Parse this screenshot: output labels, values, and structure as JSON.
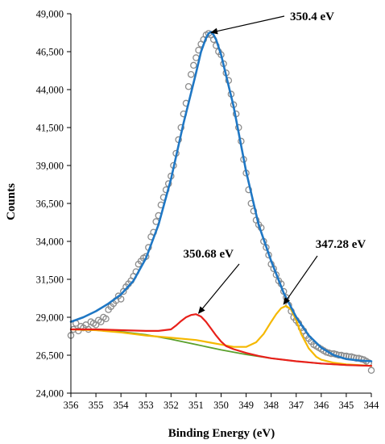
{
  "chart_data": {
    "type": "line",
    "xlabel": "Binding Energy (eV)",
    "ylabel": "Counts",
    "xlim": [
      356,
      344
    ],
    "x_reversed": true,
    "ylim": [
      24000,
      49000
    ],
    "x_ticks": [
      "356",
      "355",
      "354",
      "353",
      "352",
      "351",
      "350",
      "349",
      "348",
      "347",
      "346",
      "345",
      "344"
    ],
    "y_ticks": [
      "24,000",
      "26,500",
      "29,000",
      "31,500",
      "34,000",
      "36,500",
      "39,000",
      "41,500",
      "44,000",
      "46,500",
      "49,000"
    ],
    "grid": false,
    "legend": "none",
    "colors": {
      "data_points": "#8c8c8c",
      "envelope": "#1f77c4",
      "peak_350": "#e8201a",
      "peak_347": "#f5b800",
      "background": "#5aa02c"
    },
    "annotations": [
      {
        "text": "350.4 eV",
        "x": 350.4,
        "y": 47600
      },
      {
        "text": "350.68 eV",
        "x": 350.9,
        "y": 29100
      },
      {
        "text": "347.28 eV",
        "x": 347.5,
        "y": 29700
      }
    ],
    "series": [
      {
        "role": "data-points",
        "x": [
          356.0,
          355.9,
          355.8,
          355.7,
          355.6,
          355.5,
          355.4,
          355.3,
          355.2,
          355.1,
          355.0,
          354.9,
          354.8,
          354.7,
          354.6,
          354.5,
          354.4,
          354.3,
          354.2,
          354.1,
          354.0,
          353.9,
          353.8,
          353.7,
          353.6,
          353.5,
          353.4,
          353.3,
          353.2,
          353.1,
          353.0,
          352.9,
          352.8,
          352.7,
          352.6,
          352.5,
          352.4,
          352.3,
          352.2,
          352.1,
          352.0,
          351.9,
          351.8,
          351.7,
          351.6,
          351.5,
          351.4,
          351.3,
          351.2,
          351.1,
          351.0,
          350.9,
          350.8,
          350.7,
          350.6,
          350.5,
          350.4,
          350.3,
          350.2,
          350.1,
          350.0,
          349.9,
          349.8,
          349.7,
          349.6,
          349.5,
          349.4,
          349.3,
          349.2,
          349.1,
          349.0,
          348.9,
          348.8,
          348.7,
          348.6,
          348.5,
          348.4,
          348.3,
          348.2,
          348.1,
          348.0,
          347.9,
          347.8,
          347.7,
          347.6,
          347.5,
          347.4,
          347.3,
          347.2,
          347.1,
          347.0,
          346.9,
          346.8,
          346.7,
          346.6,
          346.5,
          346.4,
          346.3,
          346.2,
          346.1,
          346.0,
          345.9,
          345.8,
          345.7,
          345.6,
          345.5,
          345.4,
          345.3,
          345.2,
          345.1,
          345.0,
          344.9,
          344.8,
          344.7,
          344.6,
          344.5,
          344.4,
          344.3,
          344.2,
          344.1,
          344.0
        ],
        "y": [
          27800,
          28200,
          28600,
          28100,
          28400,
          28300,
          28500,
          28200,
          28700,
          28600,
          28500,
          28800,
          28700,
          29000,
          28900,
          29500,
          29700,
          29900,
          30100,
          30400,
          30200,
          30700,
          31000,
          31200,
          31400,
          31700,
          32000,
          32500,
          32700,
          32900,
          33000,
          33600,
          34300,
          34600,
          35300,
          35700,
          36400,
          36900,
          37400,
          37800,
          38300,
          39000,
          39800,
          40700,
          41500,
          42400,
          43100,
          44200,
          45000,
          45600,
          46100,
          46600,
          47000,
          47300,
          47600,
          47700,
          47600,
          47300,
          46900,
          46500,
          46300,
          45700,
          45100,
          44600,
          43700,
          43000,
          42400,
          41500,
          40600,
          39400,
          38500,
          37400,
          36500,
          36000,
          35400,
          35100,
          34900,
          34000,
          33600,
          33100,
          32500,
          32200,
          31800,
          31400,
          31200,
          30700,
          30300,
          29800,
          29400,
          29000,
          28800,
          28600,
          28300,
          28100,
          27800,
          27600,
          27400,
          27200,
          27100,
          27000,
          26900,
          26800,
          26700,
          26650,
          26600,
          26600,
          26550,
          26500,
          26500,
          26450,
          26450,
          26400,
          26400,
          26350,
          26300,
          26300,
          26250,
          26200,
          26100,
          26000,
          25500
        ]
      },
      {
        "role": "envelope-fit",
        "x": [
          356.0,
          355.5,
          355.0,
          354.5,
          354.0,
          353.5,
          353.0,
          352.5,
          352.0,
          351.5,
          351.0,
          350.8,
          350.6,
          350.5,
          350.4,
          350.3,
          350.2,
          350.0,
          349.5,
          349.0,
          348.5,
          348.0,
          347.5,
          347.0,
          346.5,
          346.0,
          345.5,
          345.0,
          344.5,
          344.0
        ],
        "y": [
          28700,
          29000,
          29400,
          29900,
          30500,
          31400,
          32900,
          35100,
          38100,
          41800,
          45100,
          46500,
          47400,
          47700,
          47800,
          47600,
          47300,
          46300,
          42900,
          38600,
          35100,
          32700,
          30600,
          29000,
          27800,
          27000,
          26500,
          26250,
          26150,
          26100
        ]
      },
      {
        "role": "component-350.68",
        "x": [
          356.0,
          355.0,
          354.0,
          353.0,
          352.5,
          352.0,
          351.8,
          351.6,
          351.4,
          351.2,
          351.0,
          350.8,
          350.6,
          350.4,
          350.2,
          350.0,
          349.8,
          349.5,
          349.0,
          348.5,
          348.0,
          347.0,
          346.0,
          345.0,
          344.0
        ],
        "y": [
          28200,
          28200,
          28150,
          28100,
          28100,
          28200,
          28450,
          28750,
          29000,
          29150,
          29200,
          29050,
          28700,
          28250,
          27800,
          27400,
          27100,
          26900,
          26650,
          26450,
          26300,
          26100,
          25950,
          25850,
          25800
        ]
      },
      {
        "role": "component-347.28",
        "x": [
          356.0,
          355.0,
          354.0,
          353.0,
          352.0,
          351.0,
          350.5,
          350.0,
          349.5,
          349.0,
          348.6,
          348.3,
          348.0,
          347.8,
          347.6,
          347.4,
          347.2,
          347.0,
          346.8,
          346.5,
          346.2,
          346.0,
          345.5,
          345.0,
          344.5,
          344.0
        ],
        "y": [
          28200,
          28150,
          28000,
          27800,
          27650,
          27500,
          27350,
          27200,
          27050,
          27050,
          27350,
          27900,
          28700,
          29200,
          29600,
          29750,
          29500,
          28800,
          27900,
          26950,
          26400,
          26200,
          26000,
          25900,
          25850,
          25800
        ]
      },
      {
        "role": "background",
        "x": [
          356.0,
          355.0,
          354.0,
          353.0,
          352.0,
          351.0,
          350.0,
          349.0,
          348.0,
          347.0,
          346.0,
          345.0,
          344.0
        ],
        "y": [
          28200,
          28150,
          28050,
          27850,
          27550,
          27200,
          26850,
          26550,
          26300,
          26100,
          25950,
          25850,
          25800
        ]
      }
    ]
  }
}
